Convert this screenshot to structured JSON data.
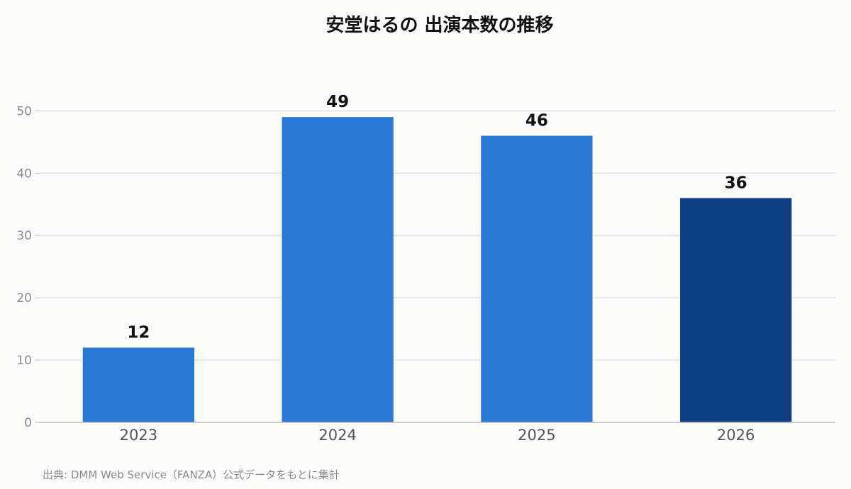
{
  "chart_data": {
    "type": "bar",
    "title": "安堂はるの 出演本数の推移",
    "categories": [
      "2023",
      "2024",
      "2025",
      "2026"
    ],
    "values": [
      12,
      49,
      46,
      36
    ],
    "data_labels": [
      "12",
      "49",
      "46",
      "36"
    ],
    "ylim": [
      0,
      53
    ],
    "yticks": [
      0,
      10,
      20,
      30,
      40,
      50
    ],
    "grid": true,
    "legend": "none",
    "xlabel": "",
    "ylabel": "",
    "bar_colors": [
      "#2a78d6",
      "#2a78d6",
      "#2a78d6",
      "#104083"
    ],
    "grid_color": "#dddddd",
    "axis_color": "#bbbbbb"
  },
  "source_note": "出典: DMM Web Service（FANZA）公式データをもとに集計"
}
